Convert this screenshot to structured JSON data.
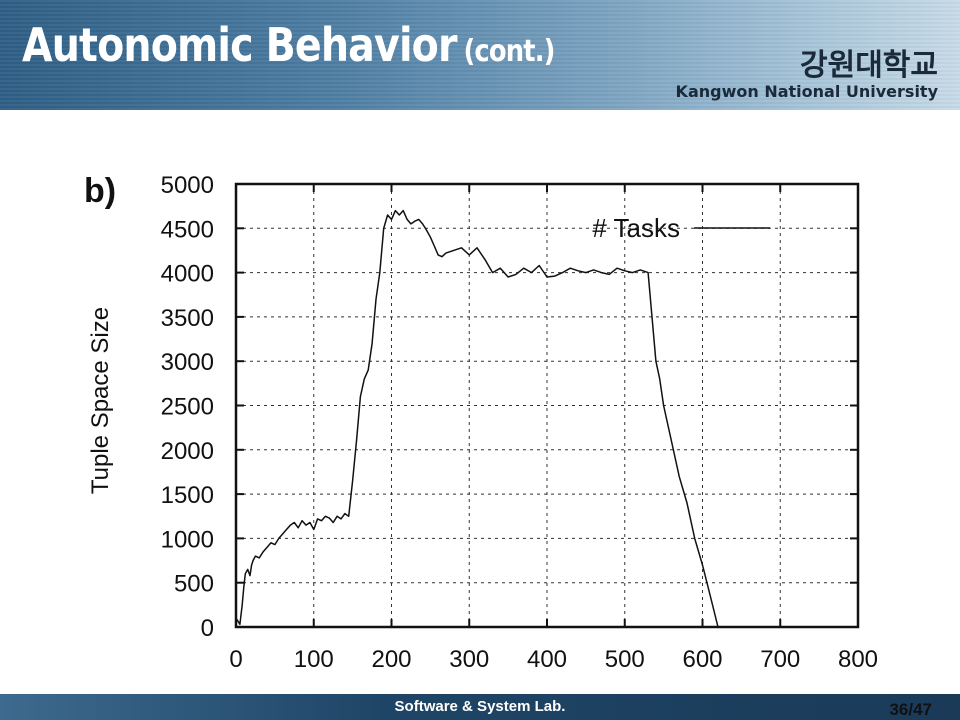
{
  "slide": {
    "title": "Autonomic Behavior",
    "title_suffix": "(cont.)",
    "university_kr": "강원대학교",
    "university_en": "Kangwon National University",
    "footer_lab": "Software & System Lab.",
    "page_number": "36/47",
    "panel_label": "b)"
  },
  "colors": {
    "header_blue": "#2f5f86",
    "footer_blue": "#1a3a58",
    "line": "#111111",
    "grid": "#333333"
  },
  "chart_data": {
    "type": "line",
    "title": "",
    "xlabel": "",
    "ylabel": "Tuple Space Size",
    "xlim": [
      0,
      800
    ],
    "ylim": [
      0,
      5000
    ],
    "xticks": [
      "0",
      "100",
      "200",
      "300",
      "400",
      "500",
      "600",
      "700",
      "800"
    ],
    "yticks": [
      "0",
      "500",
      "1000",
      "1500",
      "2000",
      "2500",
      "3000",
      "3500",
      "4000",
      "4500",
      "5000"
    ],
    "grid": true,
    "legend_position": "top-right",
    "series": [
      {
        "name": "# Tasks",
        "x": [
          0,
          3,
          5,
          8,
          10,
          12,
          15,
          18,
          20,
          22,
          25,
          30,
          35,
          40,
          45,
          50,
          55,
          60,
          65,
          70,
          75,
          80,
          85,
          90,
          95,
          100,
          105,
          110,
          115,
          120,
          125,
          130,
          135,
          140,
          145,
          150,
          155,
          160,
          165,
          170,
          175,
          180,
          185,
          190,
          195,
          200,
          205,
          210,
          215,
          220,
          225,
          230,
          235,
          240,
          245,
          250,
          255,
          260,
          265,
          270,
          280,
          290,
          300,
          310,
          320,
          330,
          340,
          350,
          360,
          370,
          380,
          390,
          400,
          410,
          420,
          430,
          440,
          450,
          460,
          470,
          480,
          490,
          500,
          510,
          520,
          530,
          535,
          540,
          545,
          550,
          560,
          570,
          580,
          590,
          600,
          610,
          620,
          630,
          640,
          650,
          660
        ],
        "y": [
          100,
          60,
          30,
          250,
          450,
          600,
          650,
          580,
          700,
          750,
          800,
          780,
          850,
          900,
          950,
          930,
          1000,
          1050,
          1100,
          1150,
          1180,
          1120,
          1200,
          1150,
          1180,
          1100,
          1220,
          1200,
          1250,
          1230,
          1180,
          1250,
          1220,
          1280,
          1250,
          1650,
          2100,
          2600,
          2800,
          2900,
          3200,
          3700,
          4000,
          4500,
          4650,
          4600,
          4700,
          4650,
          4700,
          4600,
          4550,
          4580,
          4600,
          4550,
          4480,
          4400,
          4300,
          4200,
          4180,
          4220,
          4250,
          4280,
          4200,
          4280,
          4150,
          4000,
          4050,
          3950,
          3980,
          4050,
          4000,
          4080,
          3950,
          3960,
          4000,
          4050,
          4020,
          4000,
          4030,
          4000,
          3980,
          4050,
          4020,
          4000,
          4030,
          4000,
          3500,
          3000,
          2800,
          2500,
          2100,
          1700,
          1400,
          1000,
          700,
          350,
          0,
          0,
          0,
          0,
          0
        ]
      }
    ]
  }
}
